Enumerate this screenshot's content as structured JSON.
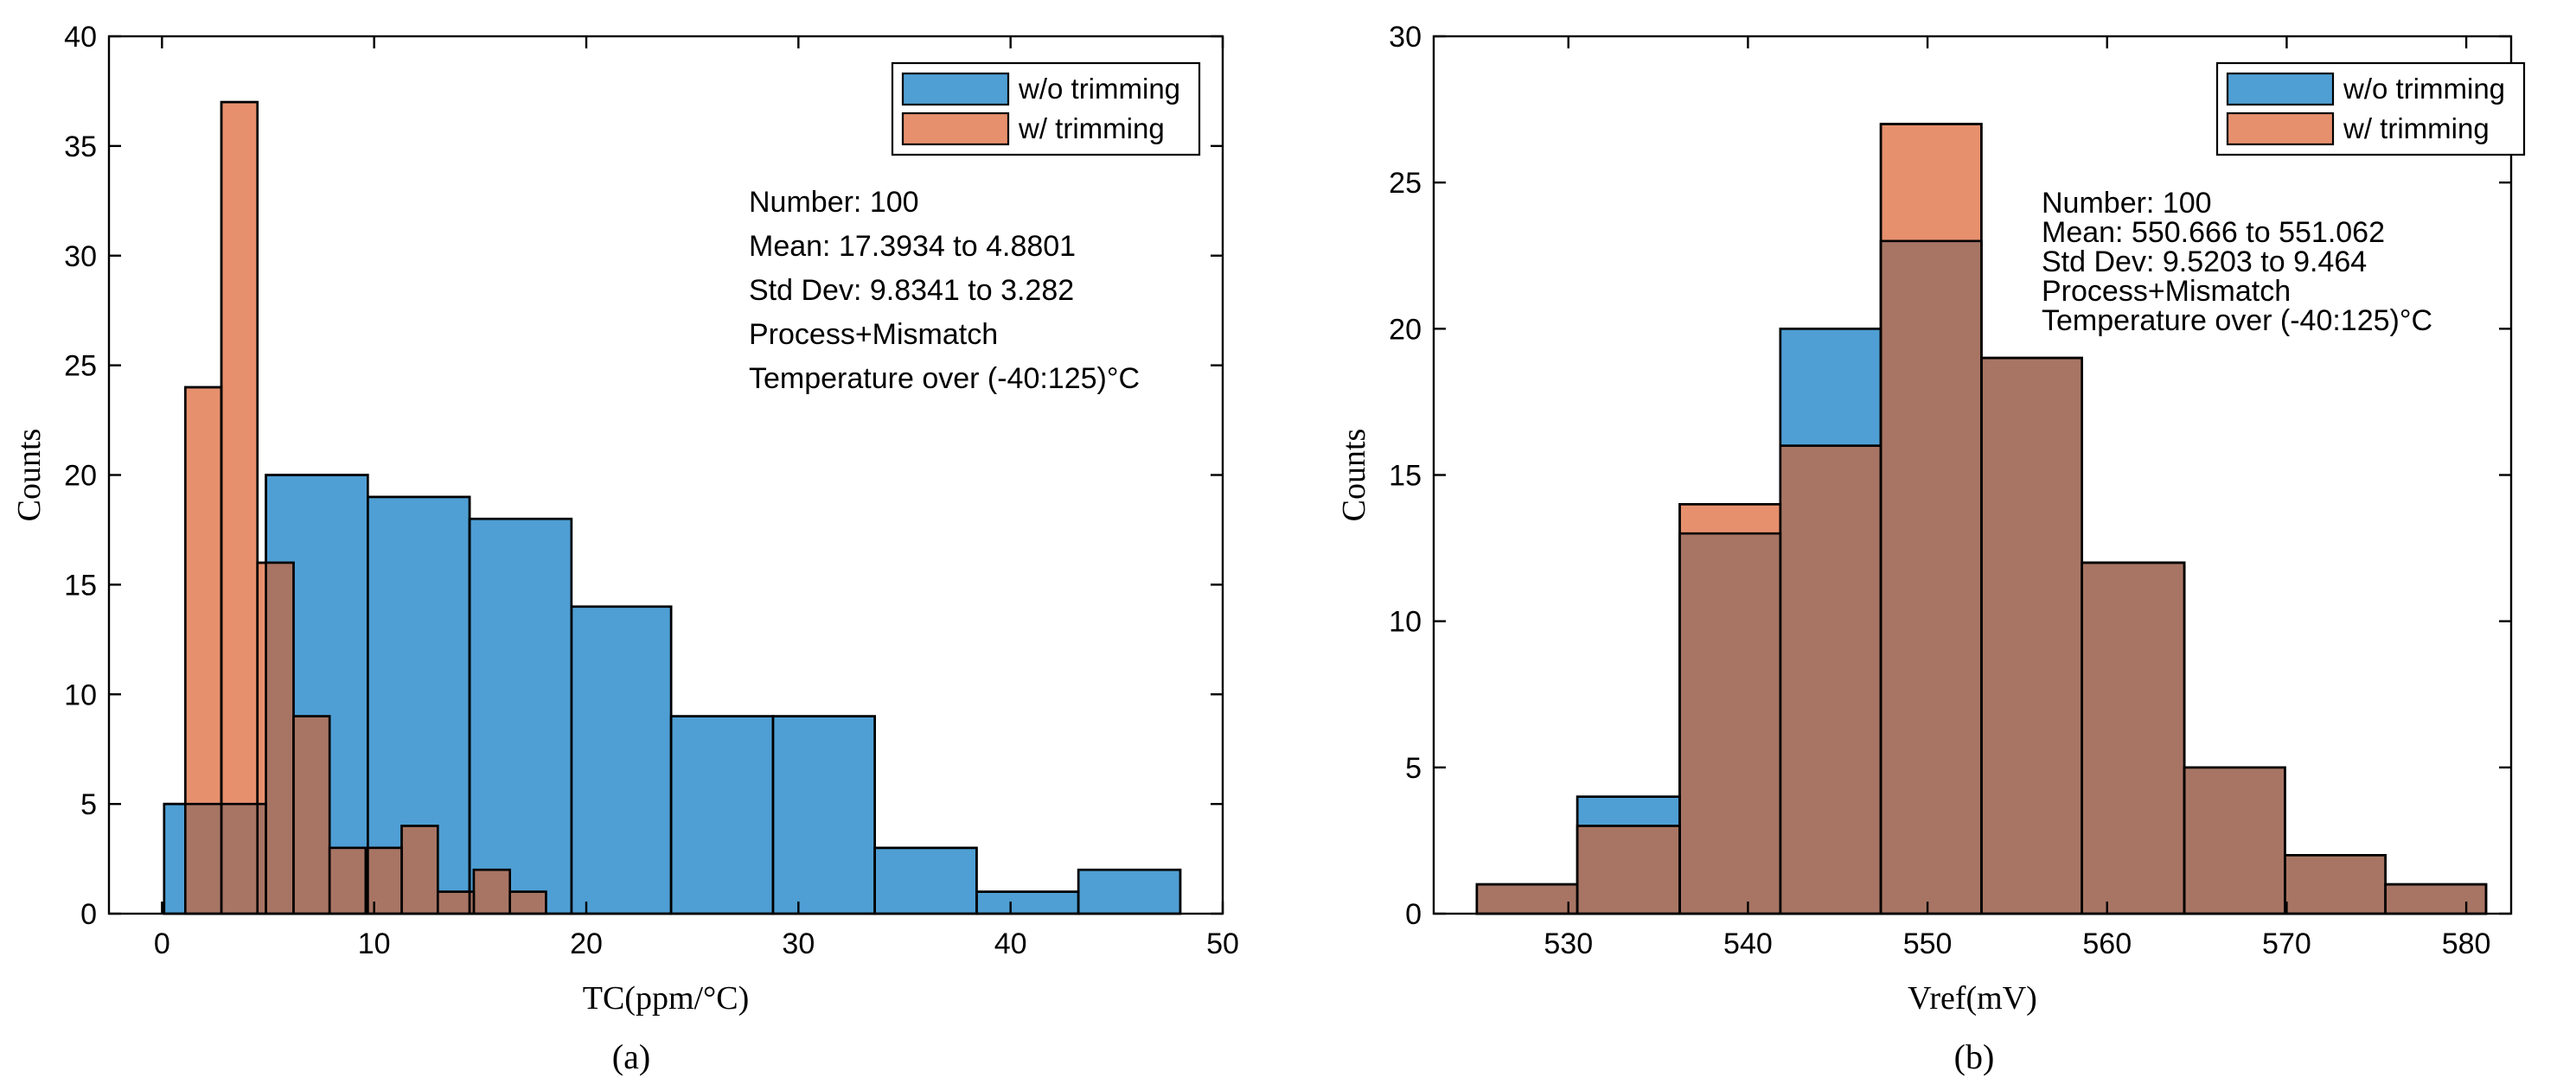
{
  "colors": {
    "blue": "#4f9fd4",
    "orange": "#e7906e",
    "overlap": "#a87564",
    "axis": "#000000",
    "legend_border": "#000000"
  },
  "chart_data": [
    {
      "type": "histogram",
      "panel_label": "(a)",
      "xlabel": "TC(ppm/°C)",
      "ylabel": "Counts",
      "xlim": [
        -2.5,
        50
      ],
      "ylim": [
        0,
        40
      ],
      "xticks": [
        0,
        10,
        20,
        30,
        40,
        50
      ],
      "yticks": [
        0,
        5,
        10,
        15,
        20,
        25,
        30,
        35,
        40
      ],
      "legend": {
        "placement": "top-right",
        "entries": [
          "w/o trimming",
          "w/ trimming"
        ]
      },
      "annotations": [
        "Number: 100",
        "Mean: 17.3934 to 4.8801",
        "Std Dev: 9.8341 to 3.282",
        "Process+Mismatch",
        "Temperature over (-40:125)°C"
      ],
      "series": [
        {
          "name": "w/o trimming",
          "bin_edges": [
            0.1,
            4.9,
            9.7,
            14.5,
            19.3,
            24.0,
            28.8,
            33.6,
            38.4,
            43.2,
            48.0
          ],
          "counts": [
            5,
            20,
            19,
            18,
            14,
            9,
            9,
            3,
            1,
            2
          ]
        },
        {
          "name": "w/ trimming",
          "bin_edges": [
            1.1,
            2.8,
            4.5,
            6.2,
            7.9,
            9.6,
            11.3,
            13.0,
            14.7,
            16.4,
            18.1
          ],
          "counts": [
            24,
            37,
            16,
            9,
            3,
            3,
            4,
            1,
            2,
            1
          ]
        }
      ]
    },
    {
      "type": "histogram",
      "panel_label": "(b)",
      "xlabel": "Vref(mV)",
      "ylabel": "Counts",
      "xlim": [
        522.5,
        582.5
      ],
      "ylim": [
        0,
        30
      ],
      "xticks": [
        530,
        540,
        550,
        560,
        570,
        580
      ],
      "yticks": [
        0,
        5,
        10,
        15,
        20,
        25,
        30
      ],
      "legend": {
        "placement": "top-right",
        "entries": [
          "w/o trimming",
          "w/ trimming"
        ]
      },
      "annotations": [
        "Number: 100",
        "Mean: 550.666 to 551.062",
        "Std Dev: 9.5203 to 9.464",
        "Process+Mismatch",
        "Temperature over (-40:125)°C"
      ],
      "series": [
        {
          "name": "w/o trimming",
          "bin_edges": [
            524.9,
            530.5,
            536.2,
            541.8,
            547.4,
            553.0,
            558.6,
            564.3,
            569.9,
            575.5,
            581.1
          ],
          "counts": [
            1,
            4,
            13,
            20,
            23,
            19,
            12,
            5,
            2,
            1
          ]
        },
        {
          "name": "w/ trimming",
          "bin_edges": [
            524.9,
            530.5,
            536.2,
            541.8,
            547.4,
            553.0,
            558.6,
            564.3,
            569.9,
            575.5,
            581.1
          ],
          "counts": [
            1,
            3,
            14,
            16,
            27,
            19,
            12,
            5,
            2,
            1
          ]
        }
      ]
    }
  ]
}
